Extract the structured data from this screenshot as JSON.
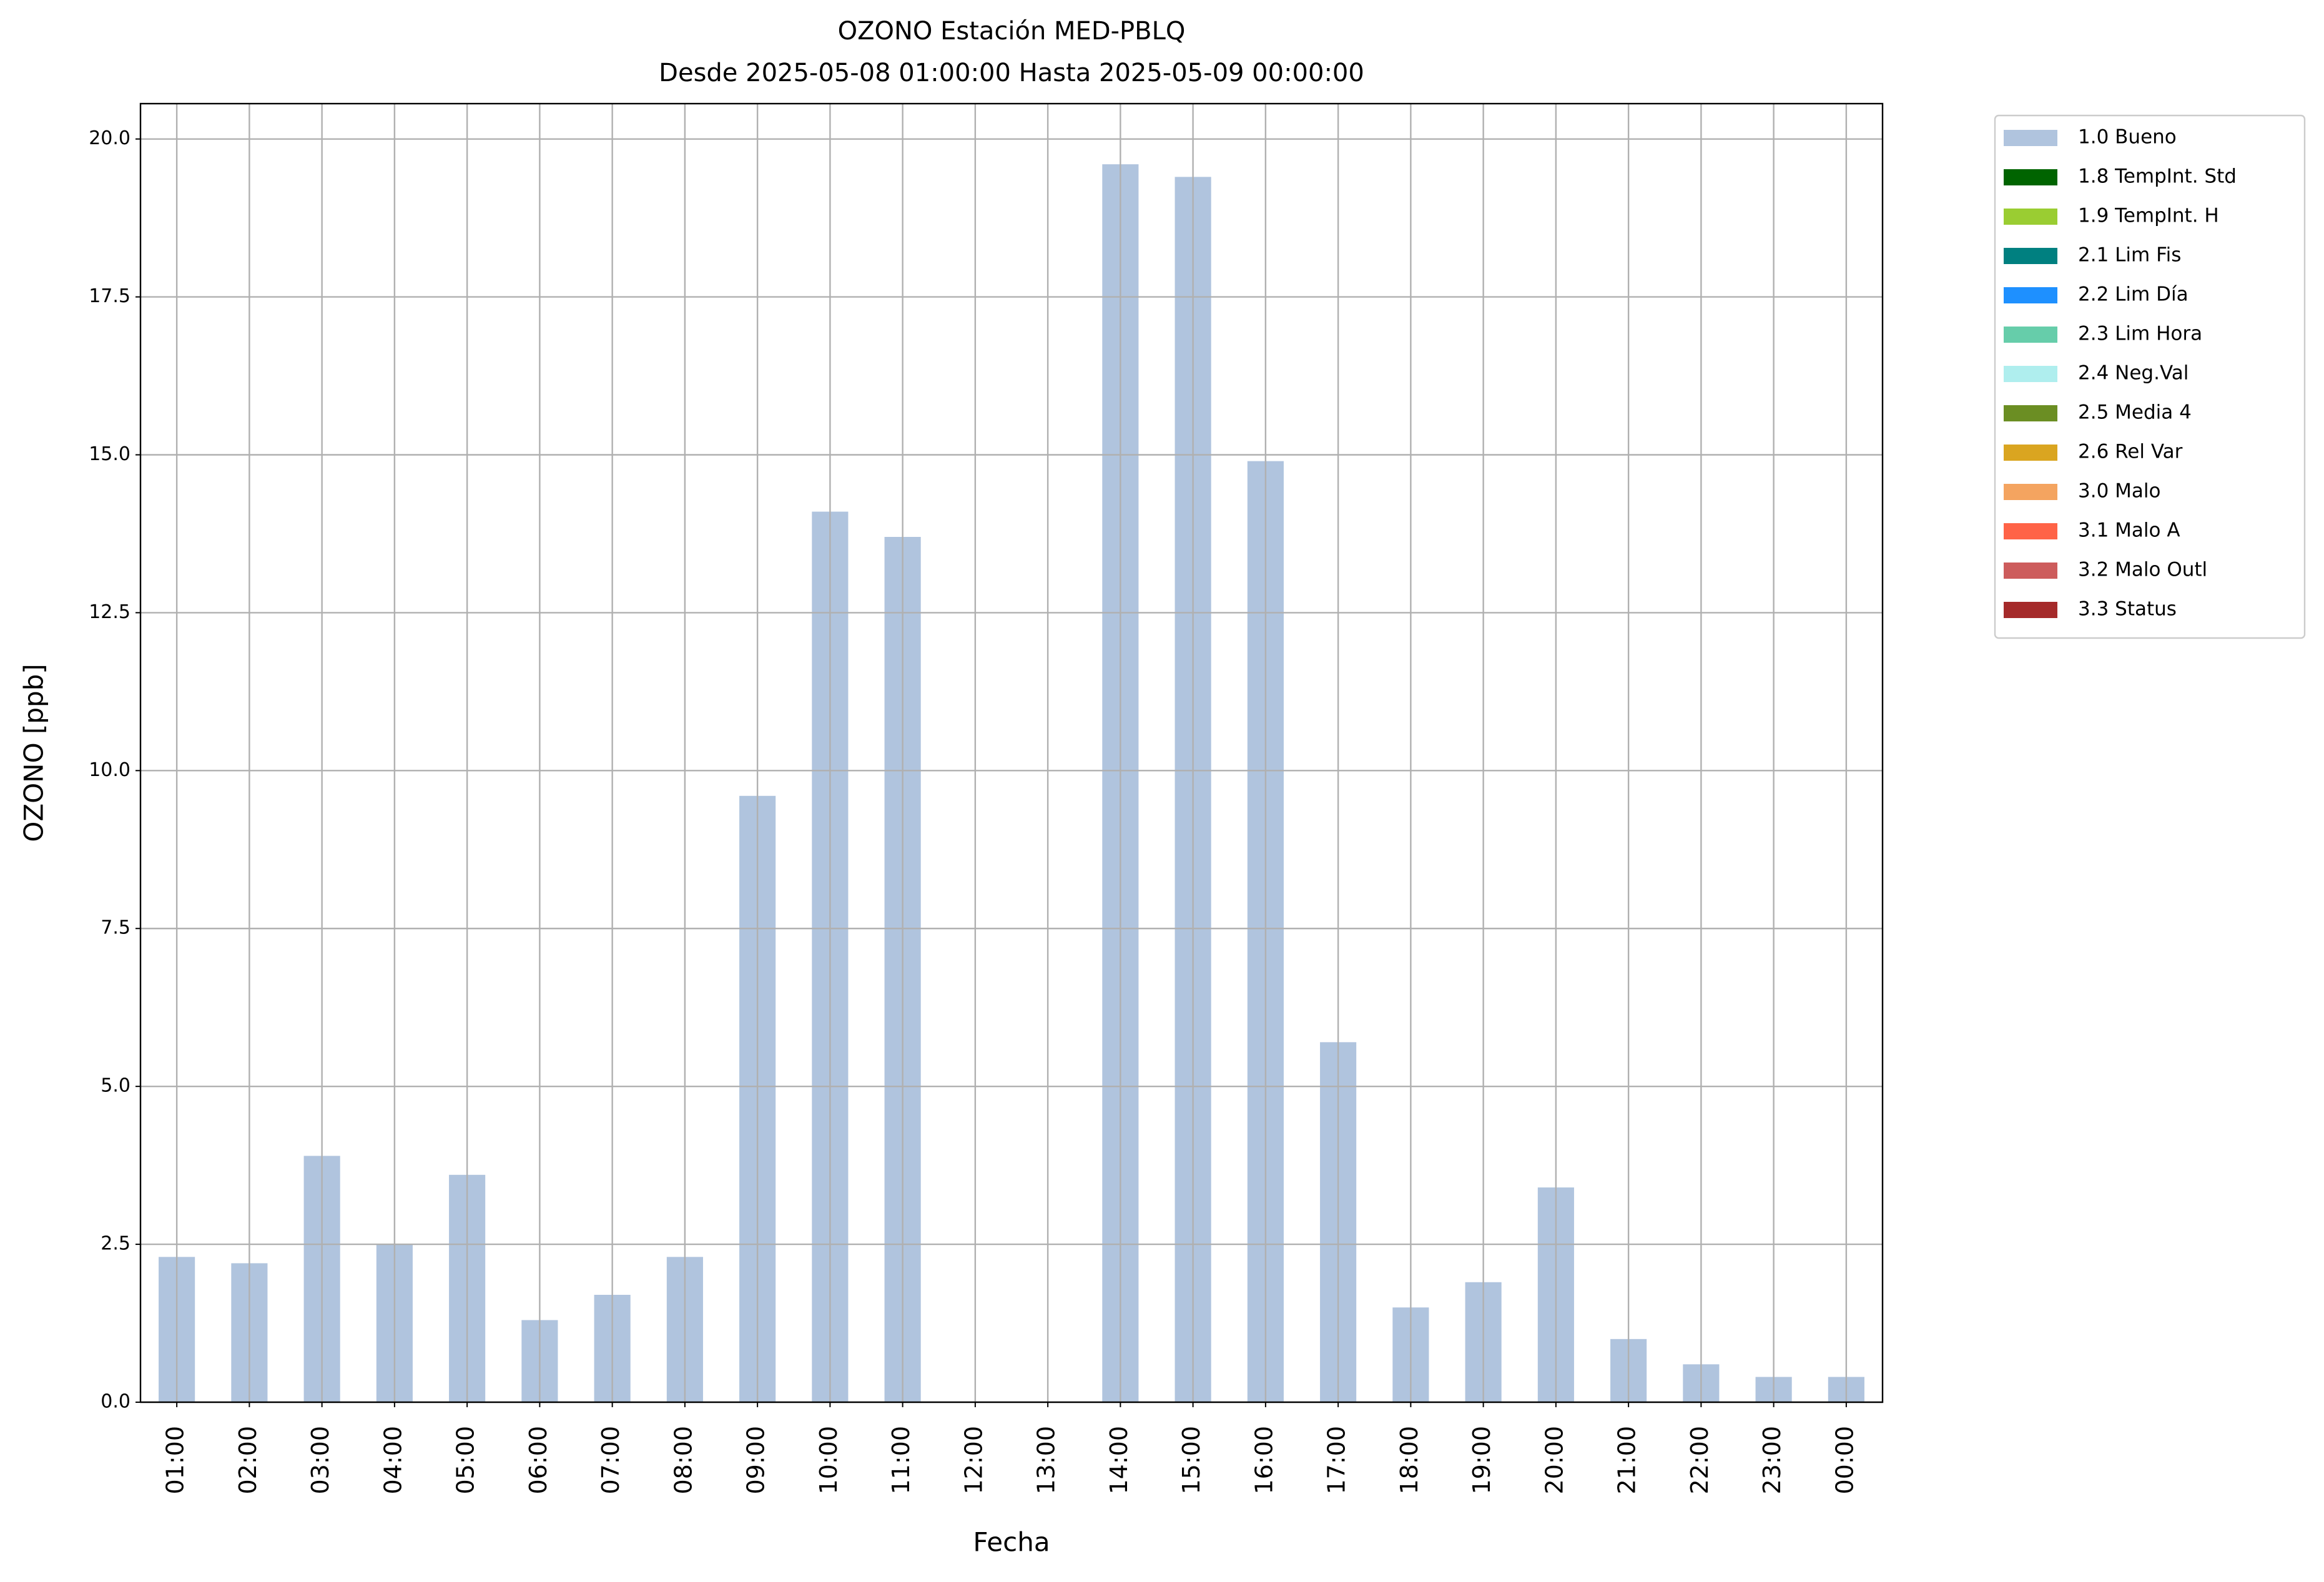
{
  "chart_data": {
    "type": "bar",
    "title": "OZONO Estación MED-PBLQ",
    "subtitle": "Desde 2025-05-08 01:00:00 Hasta 2025-05-09 00:00:00",
    "x_label": "Fecha",
    "y_label": "OZONO [ppb]",
    "categories": [
      "01:00",
      "02:00",
      "03:00",
      "04:00",
      "05:00",
      "06:00",
      "07:00",
      "08:00",
      "09:00",
      "10:00",
      "11:00",
      "12:00",
      "13:00",
      "14:00",
      "15:00",
      "16:00",
      "17:00",
      "18:00",
      "19:00",
      "20:00",
      "21:00",
      "22:00",
      "23:00",
      "00:00"
    ],
    "series": [
      {
        "name": "1.0 Bueno",
        "color": "#b0c4de",
        "values": [
          2.3,
          2.2,
          3.9,
          2.5,
          3.6,
          1.3,
          1.7,
          2.3,
          9.6,
          14.1,
          13.7,
          null,
          null,
          19.6,
          19.4,
          14.9,
          5.7,
          1.5,
          1.9,
          3.4,
          1.0,
          0.6,
          0.4,
          0.4
        ]
      },
      {
        "name": "1.8 TempInt. Std",
        "color": "#006400"
      },
      {
        "name": "1.9 TempInt. H",
        "color": "#9acd32"
      },
      {
        "name": "2.1 Lim Fis",
        "color": "#008080"
      },
      {
        "name": "2.2 Lim Día",
        "color": "#1e90ff"
      },
      {
        "name": "2.3 Lim Hora",
        "color": "#66cdaa"
      },
      {
        "name": "2.4 Neg.Val",
        "color": "#afeeee"
      },
      {
        "name": "2.5 Media 4",
        "color": "#6b8e23"
      },
      {
        "name": "2.6 Rel Var",
        "color": "#daa520"
      },
      {
        "name": "3.0 Malo",
        "color": "#f4a460"
      },
      {
        "name": "3.1 Malo A",
        "color": "#ff6347"
      },
      {
        "name": "3.2 Malo Outl",
        "color": "#cd5c5c"
      },
      {
        "name": "3.3 Status",
        "color": "#a52a2a"
      }
    ],
    "ylim": [
      0,
      20.56
    ],
    "yticks": [
      {
        "value": 0,
        "label": "0.0"
      },
      2.5,
      {
        "value": 5,
        "label": "5.0"
      },
      7.5,
      {
        "value": 10,
        "label": "10.0"
      },
      12.5,
      {
        "value": 15,
        "label": "15.0"
      },
      17.5,
      {
        "value": 20,
        "label": "20.0"
      }
    ],
    "grid": true,
    "legend_position": "outside-right"
  }
}
